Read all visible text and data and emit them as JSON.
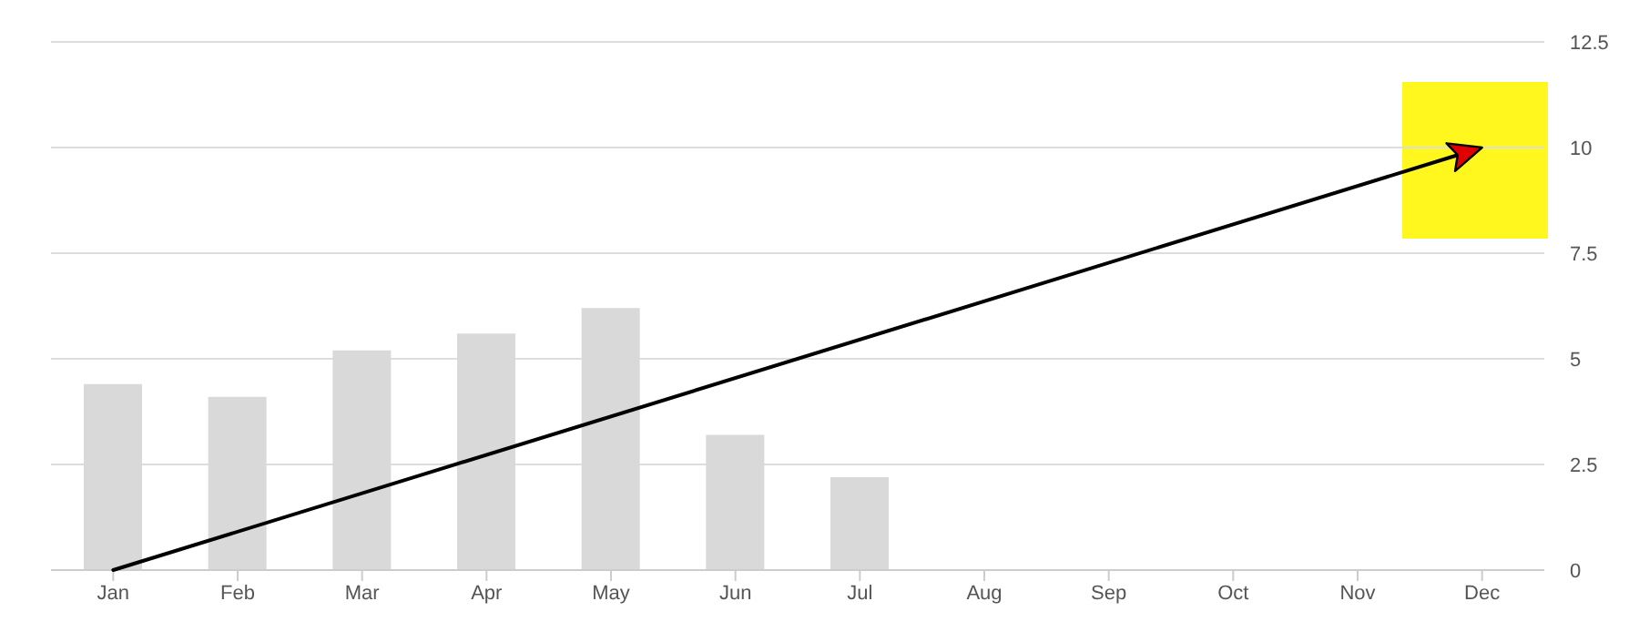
{
  "chart_data": {
    "type": "bar",
    "categories": [
      "Jan",
      "Feb",
      "Mar",
      "Apr",
      "May",
      "Jun",
      "Jul",
      "Aug",
      "Sep",
      "Oct",
      "Nov",
      "Dec"
    ],
    "series": [
      {
        "color": "#d9d9d9",
        "values": [
          4.4,
          4.1,
          5.2,
          5.6,
          6.2,
          3.2,
          2.2,
          null,
          null,
          null,
          null,
          null
        ]
      }
    ],
    "ylim": [
      0,
      12.5
    ],
    "yticks": [
      0,
      2.5,
      5,
      7.5,
      10,
      12.5
    ],
    "grid": "y"
  }
}
